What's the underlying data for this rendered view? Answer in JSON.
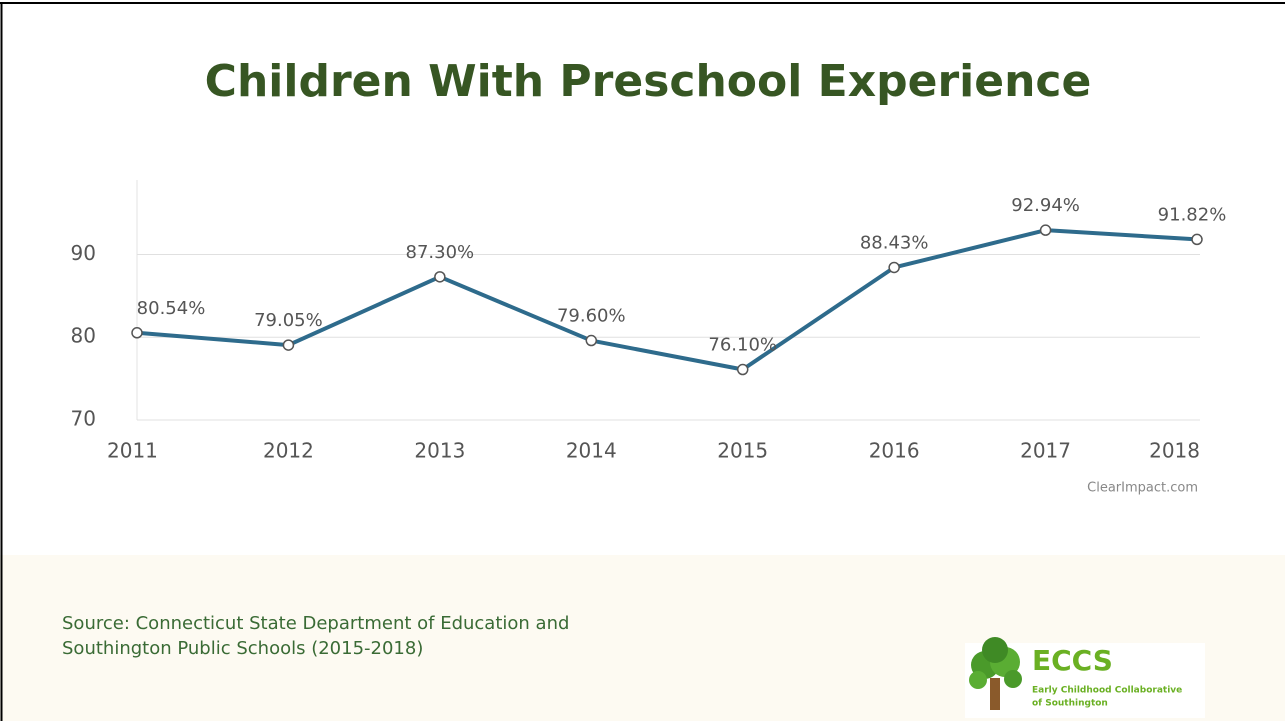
{
  "chart_data": {
    "type": "line",
    "title": "Children With Preschool Experience",
    "categories": [
      "2011",
      "2012",
      "2013",
      "2014",
      "2015",
      "2016",
      "2017",
      "2018"
    ],
    "values": [
      80.54,
      79.05,
      87.3,
      79.6,
      76.1,
      88.43,
      92.94,
      91.82
    ],
    "value_labels": [
      "80.54%",
      "79.05%",
      "87.30%",
      "79.60%",
      "76.10%",
      "88.43%",
      "92.94%",
      "91.82%"
    ],
    "color": "#2e6b8c",
    "ylim": [
      70,
      99
    ],
    "yticks": [
      70,
      80,
      90
    ],
    "grid": true,
    "credit": "ClearImpact.com",
    "source": [
      "Source: Connecticut State Department of Education and",
      "Southington Public Schools (2015-2018)"
    ],
    "logo": {
      "title": "ECCS",
      "subtitle": [
        "Early Childhood Collaborative",
        "of Southington"
      ]
    }
  }
}
